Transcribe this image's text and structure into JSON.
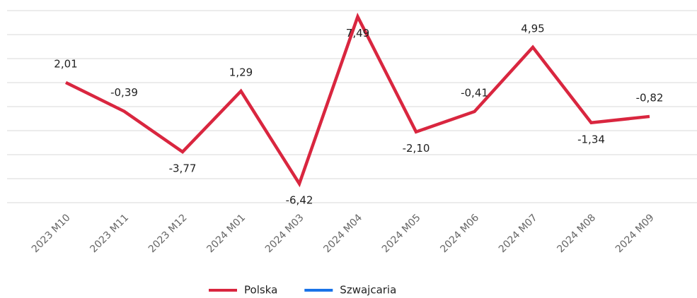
{
  "chart_data": {
    "type": "line",
    "categories": [
      "2023 M10",
      "2023 M11",
      "2023 M12",
      "2024 M01",
      "2024 M03",
      "2024 M04",
      "2024 M05",
      "2024 M06",
      "2024 M07",
      "2024 M08",
      "2024 M09"
    ],
    "series": [
      {
        "name": "Polska",
        "color": "#d9263f",
        "values": [
          2.01,
          -0.39,
          -3.77,
          1.29,
          -6.42,
          7.49,
          -2.1,
          -0.41,
          4.95,
          -1.34,
          -0.82
        ],
        "value_labels": [
          "2,01",
          "-0,39",
          "-3,77",
          "1,29",
          "-6,42",
          "7,49",
          "-2,10",
          "-0,41",
          "4,95",
          "-1,34",
          "-0,82"
        ]
      },
      {
        "name": "Szwajcaria",
        "color": "#1a73e8",
        "values": [
          null,
          null,
          null,
          null,
          null,
          null,
          null,
          null,
          null,
          null,
          null
        ]
      }
    ],
    "ylim": [
      -8,
      8
    ],
    "yticks": [
      -8,
      -6,
      -4,
      -2,
      0,
      2,
      4,
      6,
      8
    ],
    "grid": true
  }
}
